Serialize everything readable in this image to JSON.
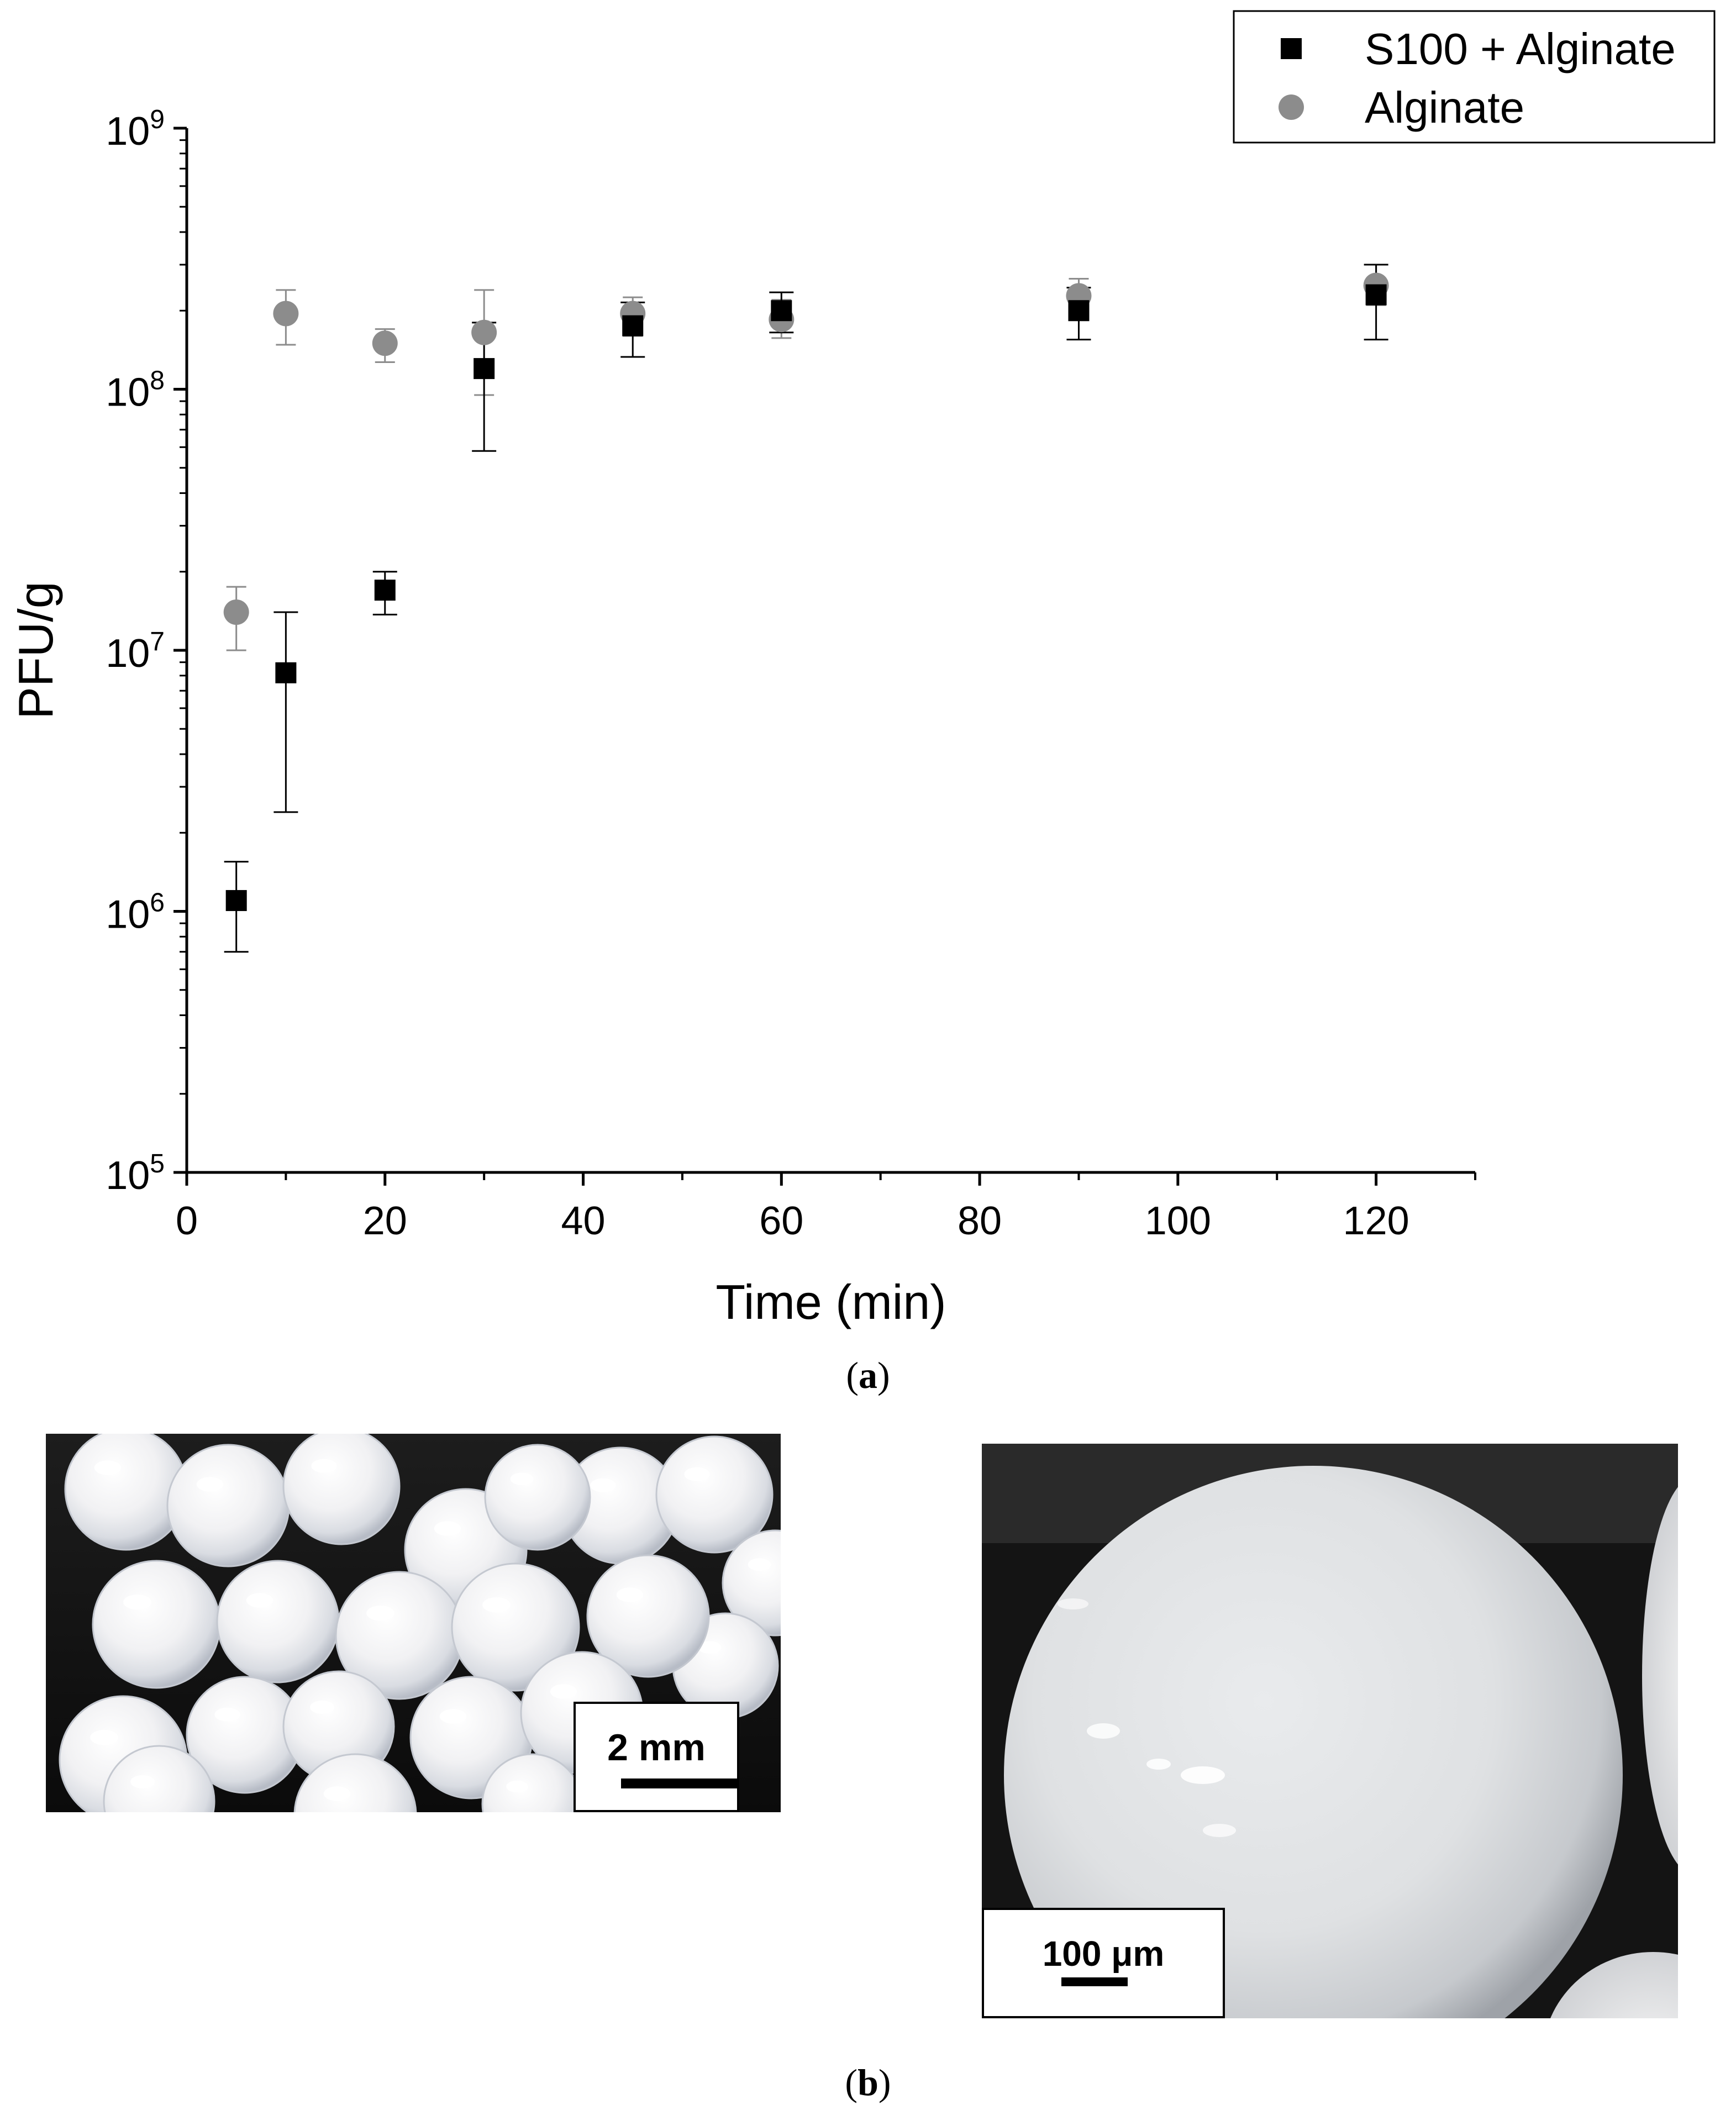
{
  "chart_data": {
    "type": "scatter",
    "title": "",
    "xlabel": "Time (min)",
    "ylabel": "PFU/g",
    "xlim": [
      0,
      130
    ],
    "ylim": [
      100000,
      1000000000
    ],
    "y_scale": "log",
    "x_ticks": [
      0,
      20,
      40,
      60,
      80,
      100,
      120
    ],
    "x_tick_labels": [
      "0",
      "20",
      "40",
      "60",
      "80",
      "100",
      "120"
    ],
    "y_tick_labels": [
      {
        "base": "10",
        "exp": "5"
      },
      {
        "base": "10",
        "exp": "6"
      },
      {
        "base": "10",
        "exp": "7"
      },
      {
        "base": "10",
        "exp": "8"
      },
      {
        "base": "10",
        "exp": "9"
      }
    ],
    "grid": false,
    "legend_position": "top-right",
    "series": [
      {
        "name": "S100 + Alginate",
        "marker": "square",
        "color": "#000000",
        "points": [
          {
            "x": 5,
            "y": 1100000,
            "lo": 700000,
            "hi": 1550000
          },
          {
            "x": 10,
            "y": 8200000,
            "lo": 2400000,
            "hi": 14000000
          },
          {
            "x": 20,
            "y": 17000000,
            "lo": 13700000,
            "hi": 20000000
          },
          {
            "x": 30,
            "y": 120000000,
            "lo": 58000000,
            "hi": 180000000
          },
          {
            "x": 45,
            "y": 175000000,
            "lo": 133000000,
            "hi": 215000000
          },
          {
            "x": 60,
            "y": 200000000,
            "lo": 165000000,
            "hi": 235000000
          },
          {
            "x": 90,
            "y": 200000000,
            "lo": 155000000,
            "hi": 245000000
          },
          {
            "x": 120,
            "y": 230000000,
            "lo": 155000000,
            "hi": 300000000
          }
        ]
      },
      {
        "name": "Alginate",
        "marker": "circle",
        "color": "#8c8c8c",
        "points": [
          {
            "x": 5,
            "y": 14000000,
            "lo": 10000000,
            "hi": 17500000
          },
          {
            "x": 10,
            "y": 195000000,
            "lo": 148000000,
            "hi": 240000000
          },
          {
            "x": 20,
            "y": 150000000,
            "lo": 127000000,
            "hi": 170000000
          },
          {
            "x": 30,
            "y": 165000000,
            "lo": 95000000,
            "hi": 240000000
          },
          {
            "x": 45,
            "y": 195000000,
            "lo": 160000000,
            "hi": 225000000
          },
          {
            "x": 60,
            "y": 185000000,
            "lo": 157000000,
            "hi": 220000000
          },
          {
            "x": 90,
            "y": 228000000,
            "lo": 190000000,
            "hi": 265000000
          },
          {
            "x": 120,
            "y": 250000000,
            "lo": 210000000,
            "hi": 300000000
          }
        ]
      }
    ]
  },
  "captions": {
    "a": "a",
    "b": "b"
  },
  "photos": {
    "left": {
      "scale_label": "2 mm"
    },
    "right": {
      "scale_label": "100 μm"
    }
  }
}
